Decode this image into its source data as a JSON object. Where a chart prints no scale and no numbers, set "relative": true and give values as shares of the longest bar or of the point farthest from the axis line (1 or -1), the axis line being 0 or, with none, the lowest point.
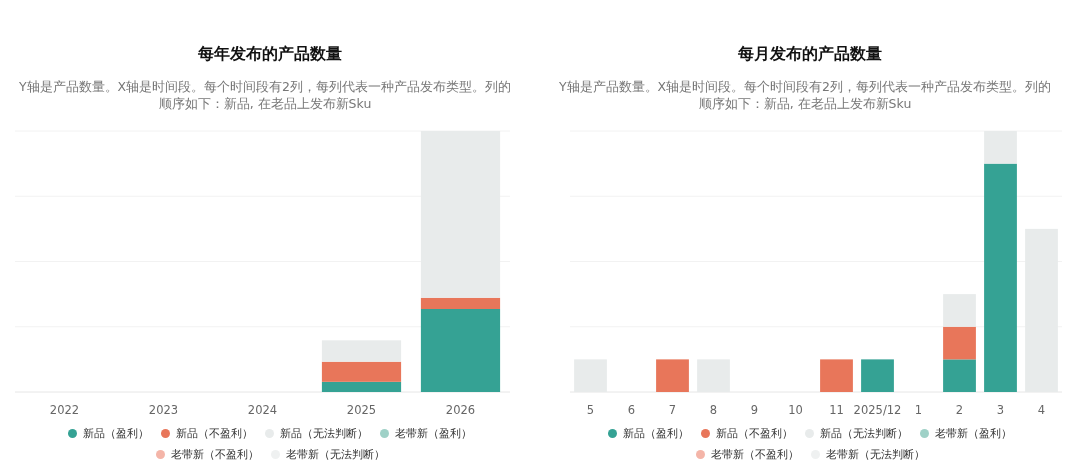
{
  "chart_data": [
    {
      "type": "bar",
      "title": "每年发布的产品数量",
      "subtitle": "Y轴是产品数量。X轴是时间段。每个时间段有2列，每列代表一种产品发布类型。列的顺序如下：新品, 在老品上发布新Sku",
      "categories": [
        "2022",
        "2023",
        "2024",
        "2025",
        "2026"
      ],
      "stacked": true,
      "relative": true,
      "grid": "y",
      "legend": "bottom",
      "series": [
        {
          "name": "新品（盈利）",
          "color": "#35a294",
          "values": [
            0,
            0,
            0,
            0.039,
            0.318
          ]
        },
        {
          "name": "新品（不盈利）",
          "color": "#e8765a",
          "values": [
            0,
            0,
            0,
            0.077,
            0.043
          ]
        },
        {
          "name": "新品（无法判断）",
          "color": "#e8ebeb",
          "values": [
            0,
            0,
            0,
            0.082,
            0.639
          ]
        },
        {
          "name": "老带新（盈利）",
          "color": "#9fd1c7",
          "values": [
            0,
            0,
            0,
            0,
            0
          ]
        },
        {
          "name": "老带新（不盈利）",
          "color": "#f4b5a8",
          "values": [
            0,
            0,
            0,
            0,
            0
          ]
        },
        {
          "name": "老带新（无法判断）",
          "color": "#eff1f1",
          "values": [
            0,
            0,
            0,
            0,
            0
          ]
        }
      ]
    },
    {
      "type": "bar",
      "title": "每月发布的产品数量",
      "subtitle": "Y轴是产品数量。X轴是时间段。每个时间段有2列，每列代表一种产品发布类型。列的顺序如下：新品, 在老品上发布新Sku",
      "categories": [
        "5",
        "6",
        "7",
        "8",
        "9",
        "10",
        "11",
        "2025/12",
        "1",
        "2",
        "3",
        "4"
      ],
      "stacked": true,
      "relative": true,
      "grid": "y",
      "legend": "bottom",
      "series": [
        {
          "name": "新品（盈利）",
          "color": "#35a294",
          "values": [
            0,
            0,
            0,
            0,
            0,
            0,
            0,
            0.125,
            0,
            0.125,
            0.875,
            0
          ]
        },
        {
          "name": "新品（不盈利）",
          "color": "#e8765a",
          "values": [
            0,
            0,
            0.125,
            0,
            0,
            0,
            0.125,
            0,
            0,
            0.125,
            0,
            0
          ]
        },
        {
          "name": "新品（无法判断）",
          "color": "#e8ebeb",
          "values": [
            0.125,
            0,
            0,
            0.125,
            0,
            0,
            0,
            0,
            0,
            0.125,
            0.125,
            0.625
          ]
        },
        {
          "name": "老带新（盈利）",
          "color": "#9fd1c7",
          "values": [
            0,
            0,
            0,
            0,
            0,
            0,
            0,
            0,
            0,
            0,
            0,
            0
          ]
        },
        {
          "name": "老带新（不盈利）",
          "color": "#f4b5a8",
          "values": [
            0,
            0,
            0,
            0,
            0,
            0,
            0,
            0,
            0,
            0,
            0,
            0
          ]
        },
        {
          "name": "老带新（无法判断）",
          "color": "#eff1f1",
          "values": [
            0,
            0,
            0,
            0,
            0,
            0,
            0,
            0,
            0,
            0,
            0,
            0
          ]
        }
      ]
    }
  ]
}
